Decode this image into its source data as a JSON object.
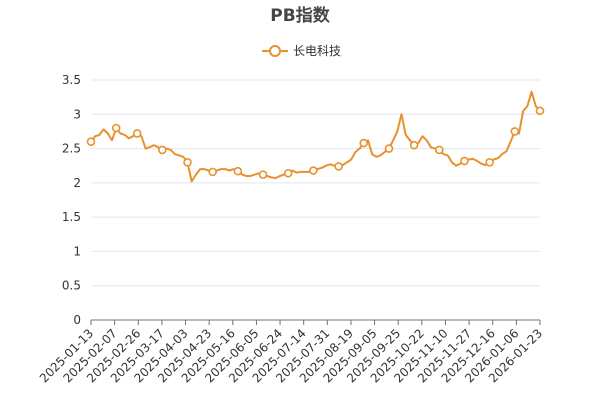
{
  "chart_data": {
    "type": "line",
    "title": "PB指数",
    "legend_position": "top-center",
    "grid": true,
    "ylim": [
      0,
      3.5
    ],
    "yticks": [
      "0",
      "0.5",
      "1",
      "1.5",
      "2",
      "2.5",
      "3",
      "3.5"
    ],
    "xtick_labels": [
      "2025-01-13",
      "2025-02-07",
      "2025-02-26",
      "2025-03-17",
      "2025-04-03",
      "2025-04-23",
      "2025-05-16",
      "2025-06-05",
      "2025-06-24",
      "2025-07-14",
      "2025-07-31",
      "2025-08-19",
      "2025-09-05",
      "2025-09-25",
      "2025-10-22",
      "2025-11-10",
      "2025-11-27",
      "2025-12-16",
      "2026-01-06",
      "2026-01-23"
    ],
    "series": [
      {
        "name": "长电科技",
        "color": "#e8912d",
        "values": [
          2.6,
          2.68,
          2.7,
          2.78,
          2.72,
          2.62,
          2.8,
          2.72,
          2.7,
          2.65,
          2.68,
          2.72,
          2.68,
          2.5,
          2.52,
          2.55,
          2.52,
          2.48,
          2.5,
          2.48,
          2.42,
          2.4,
          2.38,
          2.3,
          2.02,
          2.12,
          2.2,
          2.2,
          2.18,
          2.16,
          2.18,
          2.2,
          2.2,
          2.18,
          2.2,
          2.17,
          2.12,
          2.1,
          2.1,
          2.12,
          2.14,
          2.12,
          2.1,
          2.08,
          2.07,
          2.1,
          2.12,
          2.14,
          2.18,
          2.15,
          2.16,
          2.16,
          2.16,
          2.18,
          2.2,
          2.22,
          2.25,
          2.27,
          2.25,
          2.24,
          2.26,
          2.3,
          2.34,
          2.45,
          2.5,
          2.58,
          2.62,
          2.42,
          2.38,
          2.4,
          2.45,
          2.5,
          2.62,
          2.75,
          3.0,
          2.7,
          2.62,
          2.55,
          2.58,
          2.68,
          2.62,
          2.52,
          2.5,
          2.48,
          2.42,
          2.4,
          2.3,
          2.25,
          2.28,
          2.32,
          2.34,
          2.35,
          2.32,
          2.28,
          2.26,
          2.3,
          2.34,
          2.36,
          2.42,
          2.46,
          2.6,
          2.75,
          2.72,
          3.05,
          3.12,
          3.33,
          3.12,
          3.05
        ],
        "marker_indices": [
          0,
          6,
          11,
          17,
          23,
          29,
          35,
          41,
          47,
          53,
          59,
          65,
          71,
          77,
          83,
          89,
          95,
          101,
          107
        ]
      }
    ]
  }
}
